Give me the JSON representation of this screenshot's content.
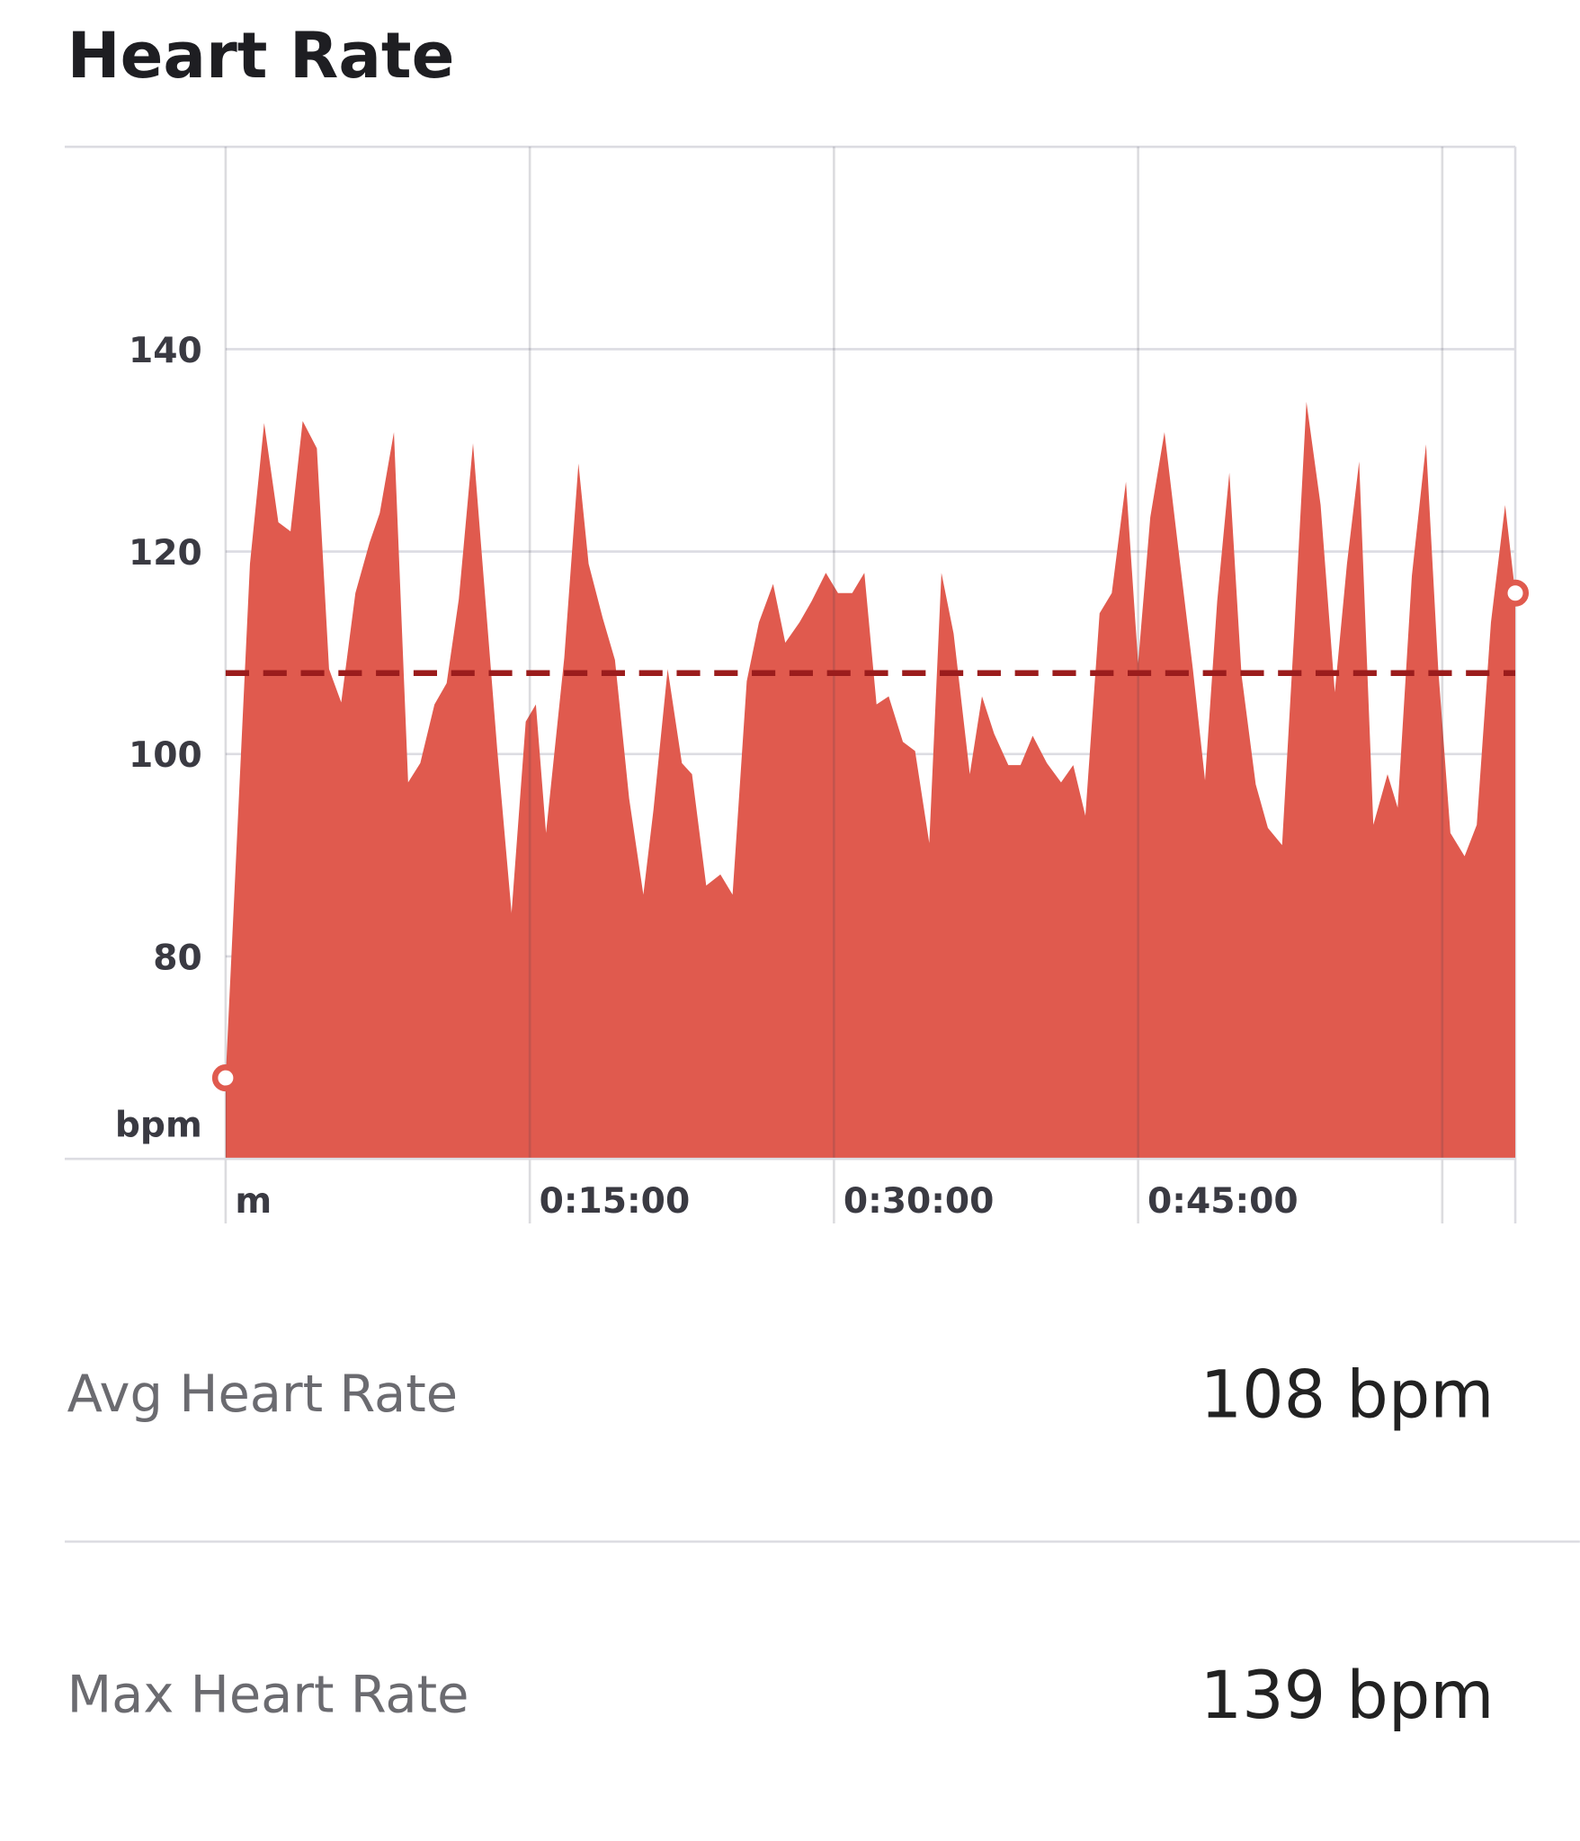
{
  "chart_data": {
    "type": "area",
    "title": "Heart Rate",
    "y_label": "bpm",
    "color": "#e05a4e",
    "reference_line": 108,
    "reference_color": "#9b1c1c",
    "xlim": [
      0,
      63.6
    ],
    "ylim": [
      60,
      160
    ],
    "xticks": [
      {
        "value": 0,
        "label": "m"
      },
      {
        "value": 15,
        "label": "0:15:00"
      },
      {
        "value": 30,
        "label": "0:30:00"
      },
      {
        "value": 45,
        "label": "0:45:00"
      },
      {
        "value": 60,
        "label": null
      }
    ],
    "yticks": [
      80,
      100,
      120,
      140
    ],
    "grid": true,
    "x": [
      0,
      1.2,
      1.9,
      2.6,
      3.2,
      3.8,
      4.5,
      5.1,
      5.7,
      6.4,
      7.1,
      7.6,
      8.3,
      9.0,
      9.6,
      10.3,
      10.9,
      11.5,
      12.2,
      13.4,
      14.1,
      14.8,
      15.3,
      15.8,
      16.7,
      17.4,
      17.9,
      18.6,
      19.2,
      19.9,
      20.6,
      21.1,
      21.8,
      22.5,
      23.0,
      23.7,
      24.4,
      25.0,
      25.7,
      26.3,
      27.0,
      27.6,
      28.3,
      28.9,
      29.6,
      30.2,
      30.9,
      31.5,
      32.1,
      32.7,
      33.4,
      34.0,
      34.7,
      35.3,
      35.9,
      36.7,
      37.3,
      37.9,
      38.6,
      39.2,
      39.8,
      40.5,
      41.2,
      41.8,
      42.4,
      43.1,
      43.7,
      44.4,
      45.0,
      45.6,
      46.3,
      47.0,
      47.7,
      48.3,
      48.9,
      49.5,
      50.1,
      50.8,
      51.4,
      52.1,
      52.7,
      53.3,
      54.0,
      54.7,
      55.3,
      55.9,
      56.6,
      57.3,
      57.8,
      58.5,
      59.2,
      59.8,
      60.4,
      61.1,
      61.7,
      62.4,
      63.1,
      63.6
    ],
    "values": [
      68,
      118.8,
      132.7,
      122.9,
      122,
      132.9,
      130.2,
      108.4,
      105.1,
      115.9,
      120.9,
      123.8,
      131.8,
      97.2,
      99.1,
      104.9,
      107,
      115.3,
      130.7,
      100.3,
      84.3,
      103.2,
      104.9,
      92.2,
      109.5,
      128.7,
      118.8,
      113.4,
      109.3,
      95.6,
      86.1,
      94.5,
      108.4,
      99.1,
      98,
      87,
      88.1,
      86.1,
      107.2,
      113,
      116.8,
      111,
      113,
      115.1,
      117.9,
      115.9,
      115.9,
      117.9,
      104.9,
      105.7,
      101.2,
      100.3,
      91.2,
      117.9,
      111.9,
      98,
      105.7,
      102,
      98.9,
      98.9,
      101.8,
      99.1,
      97.2,
      98.9,
      93.9,
      113.9,
      115.9,
      126.9,
      109,
      123.4,
      131.8,
      120,
      108.4,
      97.4,
      115.1,
      127.8,
      107.8,
      97,
      92.7,
      91,
      112.1,
      134.8,
      124.6,
      106.1,
      118.8,
      128.9,
      93,
      98,
      94.7,
      117.6,
      130.6,
      108.4,
      92.2,
      89.9,
      93,
      113,
      124.6,
      115.9
    ]
  },
  "stats": [
    {
      "label": "Avg Heart Rate",
      "value": "108 bpm"
    },
    {
      "label": "Max Heart Rate",
      "value": "139 bpm"
    }
  ]
}
